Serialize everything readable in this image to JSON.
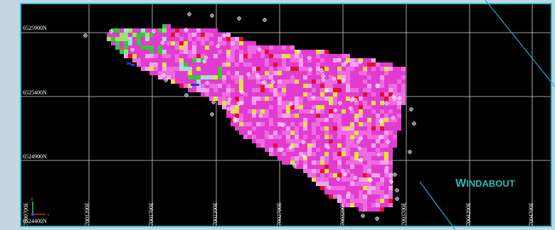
{
  "map": {
    "northing_labels": [
      "6525900N",
      "6525400N",
      "6524900N",
      "6524400N"
    ],
    "easting_labels": [
      "7000700E",
      "7001200E",
      "7001700E",
      "7002200E",
      "7002700E",
      "7003200E",
      "7003700E",
      "7004200E",
      "7004700E"
    ],
    "site_label_first": "W",
    "site_label_rest": "INDABOUT",
    "axis_labels": {
      "y": "Y",
      "x": "X"
    },
    "colors": {
      "background": "#000000",
      "grid": "#d9d9d9",
      "frame": "#2ec3d3",
      "magenta": "#e23bd0",
      "pink": "#f06ae0",
      "light_pink": "#f3a4ef",
      "red": "#e01030",
      "yellow": "#e8e23a",
      "green": "#3bc43b",
      "light_green": "#9be36a",
      "cyan_gray": "#a9d9d9",
      "blue": "#1d3de0",
      "label": "#2fb7b9"
    }
  }
}
